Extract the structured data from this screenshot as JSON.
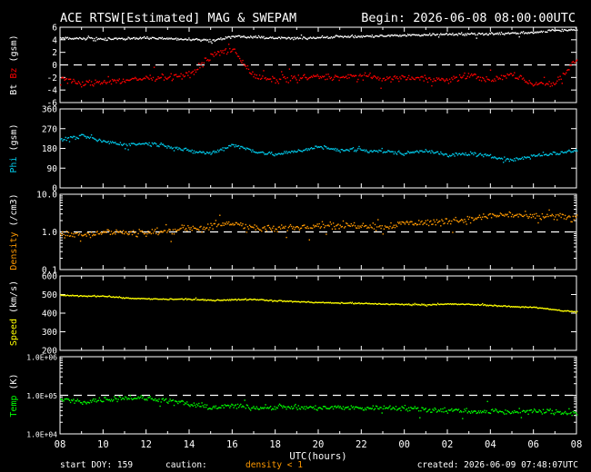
{
  "header": {
    "title": "ACE RTSW[Estimated] MAG & SWEPAM",
    "begin": "Begin: 2026-06-08 08:00:00UTC"
  },
  "footer": {
    "start_doy": "start DOY: 159",
    "caution_label": "caution:",
    "caution_note": "density < 1",
    "created": "created: 2026-06-09 07:48:07UTC"
  },
  "colors": {
    "background": "#000000",
    "axes": "#ffffff",
    "bt": "#ffffff",
    "bz": "#ff0000",
    "phi": "#00c8e8",
    "density": "#ff9900",
    "speed": "#ffff00",
    "temp": "#00ff00"
  },
  "chart_data": [
    {
      "type": "scatter",
      "panel": "mag",
      "ylabel_parts": [
        "Bt",
        "Bz",
        "(gsm)"
      ],
      "ylim": [
        -6,
        6
      ],
      "yticks": [
        -6,
        -4,
        -2,
        0,
        2,
        4,
        6
      ],
      "reference_lines": [
        0
      ],
      "x_hours": [
        0,
        1,
        2,
        3,
        4,
        5,
        6,
        7,
        8,
        9,
        10,
        11,
        12,
        13,
        14,
        15,
        16,
        17,
        18,
        19,
        20,
        21,
        22,
        23,
        24
      ],
      "series": [
        {
          "key": "Bt",
          "color": "#ffffff",
          "values": [
            4.3,
            4.3,
            4.2,
            4.3,
            4.4,
            4.3,
            4.2,
            4.0,
            4.6,
            4.5,
            4.4,
            4.3,
            4.5,
            4.6,
            4.6,
            4.7,
            4.8,
            4.9,
            5.0,
            5.0,
            5.1,
            5.1,
            5.3,
            5.6,
            5.7
          ]
        },
        {
          "key": "Bz",
          "color": "#ff0000",
          "values": [
            -2.0,
            -3.0,
            -2.6,
            -2.4,
            -2.0,
            -1.8,
            -1.6,
            1.6,
            2.6,
            -1.8,
            -2.4,
            -2.0,
            -1.8,
            -2.0,
            -1.6,
            -2.2,
            -1.9,
            -2.0,
            -2.4,
            -1.5,
            -2.4,
            -1.4,
            -3.0,
            -2.8,
            1.0
          ]
        }
      ]
    },
    {
      "type": "scatter",
      "panel": "phi",
      "ylabel_parts": [
        "Phi",
        "(gsm)"
      ],
      "ylim": [
        0,
        360
      ],
      "yticks": [
        0,
        90,
        180,
        270,
        360
      ],
      "x_hours": [
        0,
        1,
        2,
        3,
        4,
        5,
        6,
        7,
        8,
        9,
        10,
        11,
        12,
        13,
        14,
        15,
        16,
        17,
        18,
        19,
        20,
        21,
        22,
        23,
        24
      ],
      "series": [
        {
          "key": "Phi",
          "color": "#00c8e8",
          "values": [
            220,
            240,
            215,
            200,
            205,
            195,
            170,
            160,
            200,
            170,
            155,
            170,
            190,
            175,
            175,
            170,
            160,
            175,
            150,
            160,
            145,
            130,
            150,
            160,
            175
          ]
        }
      ]
    },
    {
      "type": "scatter",
      "panel": "density",
      "ylabel_parts": [
        "Density",
        "(/cm3)"
      ],
      "yscale": "log",
      "ylim": [
        0.1,
        10
      ],
      "yticks": [
        0.1,
        1.0,
        10.0
      ],
      "reference_lines": [
        1.0
      ],
      "x_hours": [
        0,
        1,
        2,
        3,
        4,
        5,
        6,
        7,
        8,
        9,
        10,
        11,
        12,
        13,
        14,
        15,
        16,
        17,
        18,
        19,
        20,
        21,
        22,
        23,
        24
      ],
      "series": [
        {
          "key": "Density",
          "color": "#ff9900",
          "values": [
            0.9,
            0.9,
            1.0,
            1.0,
            1.0,
            1.1,
            1.3,
            1.4,
            1.8,
            1.3,
            1.2,
            1.4,
            1.6,
            1.5,
            1.6,
            1.4,
            1.8,
            1.8,
            2.0,
            2.2,
            2.8,
            3.0,
            2.5,
            2.8,
            2.2
          ]
        }
      ]
    },
    {
      "type": "scatter",
      "panel": "speed",
      "ylabel_parts": [
        "Speed",
        "(km/s)"
      ],
      "ylim": [
        200,
        600
      ],
      "yticks": [
        200,
        300,
        400,
        500,
        600
      ],
      "x_hours": [
        0,
        1,
        2,
        3,
        4,
        5,
        6,
        7,
        8,
        9,
        10,
        11,
        12,
        13,
        14,
        15,
        16,
        17,
        18,
        19,
        20,
        21,
        22,
        23,
        24
      ],
      "series": [
        {
          "key": "Speed",
          "color": "#ffff00",
          "values": [
            500,
            495,
            495,
            485,
            480,
            478,
            478,
            472,
            475,
            478,
            470,
            465,
            460,
            458,
            455,
            452,
            450,
            448,
            452,
            450,
            445,
            438,
            435,
            420,
            410
          ]
        }
      ]
    },
    {
      "type": "scatter",
      "panel": "temp",
      "ylabel_parts": [
        "Temp",
        "(K)"
      ],
      "yscale": "log",
      "ylim": [
        10000,
        1000000
      ],
      "yticks": [
        10000,
        100000,
        1000000
      ],
      "ytick_labels": [
        "1.0E+04",
        "1.0E+05",
        "1.0E+06"
      ],
      "reference_lines": [
        100000
      ],
      "x_hours": [
        0,
        1,
        2,
        3,
        4,
        5,
        6,
        7,
        8,
        9,
        10,
        11,
        12,
        13,
        14,
        15,
        16,
        17,
        18,
        19,
        20,
        21,
        22,
        23,
        24
      ],
      "series": [
        {
          "key": "Temp",
          "color": "#00ff00",
          "values": [
            80000,
            70000,
            80000,
            90000,
            85000,
            75000,
            60000,
            50000,
            55000,
            50000,
            52000,
            50000,
            48000,
            50000,
            48000,
            50000,
            48000,
            45000,
            42000,
            40000,
            40000,
            38000,
            40000,
            38000,
            35000
          ]
        }
      ]
    }
  ],
  "xaxis": {
    "label": "UTC(hours)",
    "tick_labels": [
      "08",
      "10",
      "12",
      "14",
      "16",
      "18",
      "20",
      "22",
      "00",
      "02",
      "04",
      "06",
      "08"
    ],
    "range_hours": [
      0,
      24
    ]
  }
}
